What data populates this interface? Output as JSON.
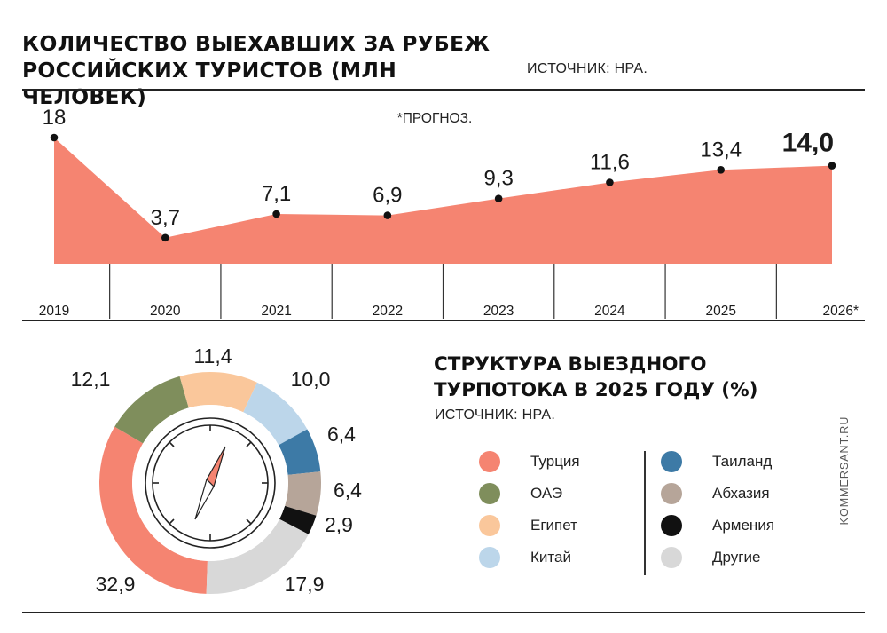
{
  "header": {
    "title": "КОЛИЧЕСТВО ВЫЕХАВШИХ ЗА РУБЕЖ РОССИЙСКИХ ТУРИСТОВ (МЛН ЧЕЛОВЕК)",
    "source": "ИСТОЧНИК: НРА."
  },
  "forecast_note": "*ПРОГНОЗ.",
  "section2": {
    "title": "СТРУКТУРА ВЫЕЗДНОГО ТУРПОТОКА В 2025 ГОДУ (%)",
    "source": "ИСТОЧНИК: НРА."
  },
  "brand": "KOMMERSANT.RU",
  "chart_data": [
    {
      "type": "area",
      "title": "КОЛИЧЕСТВО ВЫЕХАВШИХ ЗА РУБЕЖ РОССИЙСКИХ ТУРИСТОВ (МЛН ЧЕЛОВЕК)",
      "categories": [
        "2019",
        "2020",
        "2021",
        "2022",
        "2023",
        "2024",
        "2025",
        "2026*"
      ],
      "values": [
        18,
        3.7,
        7.1,
        6.9,
        9.3,
        11.6,
        13.4,
        14.0
      ],
      "labels": [
        "18",
        "3,7",
        "7,1",
        "6,9",
        "9,3",
        "11,6",
        "13,4",
        "14,0"
      ],
      "highlight_index": 7,
      "ylim": [
        0,
        20
      ],
      "color": "#f58471"
    },
    {
      "type": "pie",
      "title": "СТРУКТУРА ВЫЕЗДНОГО ТУРПОТОКА В 2025 ГОДУ (%)",
      "slices": [
        {
          "name": "Турция",
          "value": 32.9,
          "label": "32,9",
          "color": "#f58471"
        },
        {
          "name": "ОАЭ",
          "value": 12.1,
          "label": "12,1",
          "color": "#7f8e5c"
        },
        {
          "name": "Египет",
          "value": 11.4,
          "label": "11,4",
          "color": "#fac79b"
        },
        {
          "name": "Китай",
          "value": 10.0,
          "label": "10,0",
          "color": "#bcd6ea"
        },
        {
          "name": "Таиланд",
          "value": 6.4,
          "label": "6,4",
          "color": "#3d7aa6"
        },
        {
          "name": "Абхазия",
          "value": 6.4,
          "label": "6,4",
          "color": "#b6a599"
        },
        {
          "name": "Армения",
          "value": 2.9,
          "label": "2,9",
          "color": "#111111"
        },
        {
          "name": "Другие",
          "value": 17.9,
          "label": "17,9",
          "color": "#d8d8d8"
        }
      ]
    }
  ]
}
